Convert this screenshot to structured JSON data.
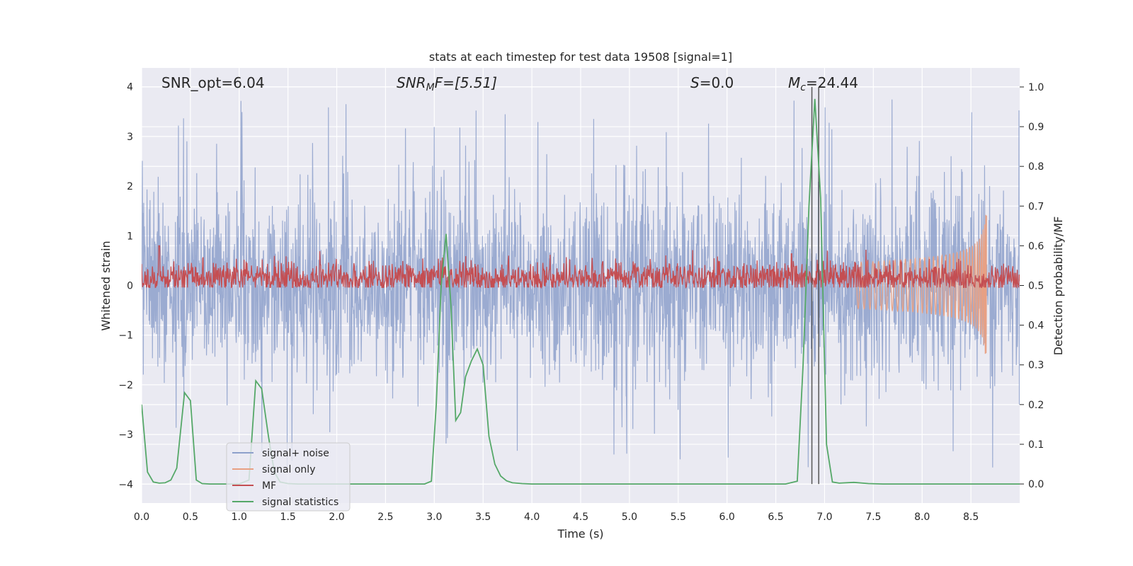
{
  "chart_data": {
    "type": "line",
    "title": "stats at each timestep for test data 19508 [signal=1]",
    "xlabel": "Time (s)",
    "ylabel_left": "Whitened strain",
    "ylabel_right": "Detection probability/MF",
    "xlim": [
      0.0,
      9.0
    ],
    "ylim_left": [
      -4.38,
      4.38
    ],
    "ylim_right": [
      -0.048,
      1.048
    ],
    "xticks": [
      0.0,
      0.5,
      1.0,
      1.5,
      2.0,
      2.5,
      3.0,
      3.5,
      4.0,
      4.5,
      5.0,
      5.5,
      6.0,
      6.5,
      7.0,
      7.5,
      8.0,
      8.5
    ],
    "xtick_labels": [
      "0.0",
      "0.5",
      "1.0",
      "1.5",
      "2.0",
      "2.5",
      "3.0",
      "3.5",
      "4.0",
      "4.5",
      "5.0",
      "5.5",
      "6.0",
      "6.5",
      "7.0",
      "7.5",
      "8.0",
      "8.5"
    ],
    "yticks_left": [
      -4,
      -3,
      -2,
      -1,
      0,
      1,
      2,
      3,
      4
    ],
    "ytick_labels_left": [
      "−4",
      "−3",
      "−2",
      "−1",
      "0",
      "1",
      "2",
      "3",
      "4"
    ],
    "yticks_right": [
      0.0,
      0.1,
      0.2,
      0.3,
      0.4,
      0.5,
      0.6,
      0.7,
      0.8,
      0.9,
      1.0
    ],
    "ytick_labels_right": [
      "0.0",
      "0.1",
      "0.2",
      "0.3",
      "0.4",
      "0.5",
      "0.6",
      "0.7",
      "0.8",
      "0.9",
      "1.0"
    ],
    "grid": true,
    "legend_placement": "lower-left",
    "annotations": {
      "snr_opt": "SNR_opt=6.04",
      "snr_mf_base": "SNR",
      "snr_mf_sub": "M",
      "snr_mf_rest": "F=[5.51]",
      "s_label": "S",
      "s_value": "=0.0",
      "mc_label": "M",
      "mc_sub": "c",
      "mc_value": "=24.44"
    },
    "vertical_markers_x": [
      6.87,
      6.94
    ],
    "series": [
      {
        "name": "signal+ noise",
        "color": "#8da0cb",
        "axis": "left",
        "description": "dense whitened noise, amplitude mostly within ±2.7 with peaks to ~3.9"
      },
      {
        "name": "signal only",
        "color": "#e8a083",
        "axis": "left",
        "chirp_start": 7.3,
        "chirp_end": 8.66,
        "peak_amplitude": 1.45
      },
      {
        "name": "MF",
        "color": "#c44e52",
        "axis": "right",
        "baseline": 0.52,
        "spread": 0.035,
        "spikes": [
          {
            "x": 0.18,
            "y": 0.6
          },
          {
            "x": 6.66,
            "y": 0.58
          }
        ]
      },
      {
        "name": "signal statistics",
        "color": "#55a868",
        "axis": "right",
        "x": [
          0.0,
          0.06,
          0.12,
          0.18,
          0.24,
          0.3,
          0.36,
          0.44,
          0.5,
          0.56,
          0.62,
          0.7,
          0.8,
          0.9,
          1.0,
          1.1,
          1.17,
          1.23,
          1.3,
          1.36,
          1.42,
          1.5,
          1.6,
          2.0,
          2.5,
          2.9,
          2.97,
          3.02,
          3.07,
          3.12,
          3.17,
          3.22,
          3.27,
          3.32,
          3.38,
          3.44,
          3.5,
          3.56,
          3.62,
          3.68,
          3.74,
          3.8,
          3.9,
          4.0,
          5.0,
          6.0,
          6.6,
          6.72,
          6.78,
          6.84,
          6.9,
          6.96,
          7.02,
          7.08,
          7.15,
          7.3,
          7.45,
          7.6,
          8.0,
          9.0
        ],
        "y": [
          0.2,
          0.03,
          0.005,
          0.002,
          0.003,
          0.01,
          0.04,
          0.23,
          0.21,
          0.01,
          0.001,
          0.0,
          0.0,
          0.0,
          0.0,
          0.01,
          0.26,
          0.24,
          0.12,
          0.03,
          0.005,
          0.001,
          0.0,
          0.0,
          0.0,
          0.0,
          0.007,
          0.2,
          0.5,
          0.63,
          0.45,
          0.16,
          0.18,
          0.27,
          0.31,
          0.34,
          0.3,
          0.12,
          0.05,
          0.02,
          0.008,
          0.003,
          0.001,
          0.0,
          0.0,
          0.0,
          0.0,
          0.007,
          0.3,
          0.7,
          0.97,
          0.72,
          0.1,
          0.005,
          0.002,
          0.004,
          0.001,
          0.0,
          0.0,
          0.0
        ]
      }
    ]
  }
}
